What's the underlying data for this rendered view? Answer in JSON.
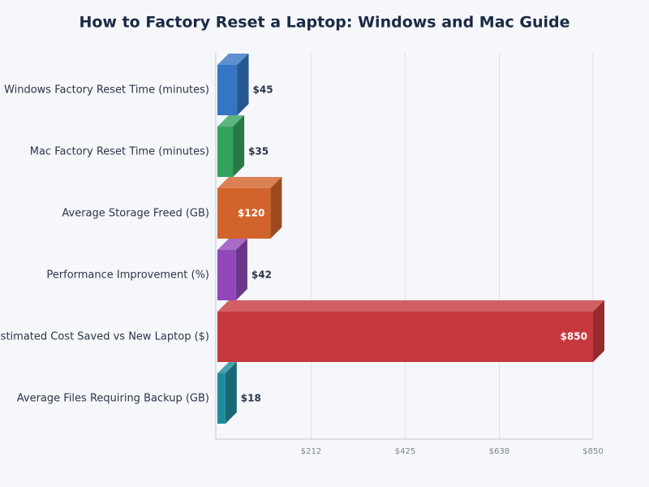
{
  "chart_data": {
    "type": "bar",
    "orientation": "horizontal",
    "title": "How to Factory Reset a Laptop: Windows and Mac Guide",
    "categories": [
      "Windows Factory Reset Time (minutes)",
      "Mac Factory Reset Time (minutes)",
      "Average Storage Freed (GB)",
      "Performance Improvement (%)",
      "Estimated Cost Saved vs New Laptop ($)",
      "Average Files Requiring Backup (GB)"
    ],
    "values": [
      45,
      35,
      120,
      42,
      850,
      18
    ],
    "value_labels": [
      "$45",
      "$35",
      "$120",
      "$42",
      "$850",
      "$18"
    ],
    "colors": [
      "#3575c2",
      "#35a35e",
      "#d2632b",
      "#9048b8",
      "#c6383e",
      "#1f8b9b"
    ],
    "xlim": [
      0,
      850
    ],
    "xticks": [
      {
        "value": 212,
        "label": "$212"
      },
      {
        "value": 425,
        "label": "$425"
      },
      {
        "value": 638,
        "label": "$638"
      },
      {
        "value": 850,
        "label": "$850"
      }
    ],
    "grid": true
  }
}
